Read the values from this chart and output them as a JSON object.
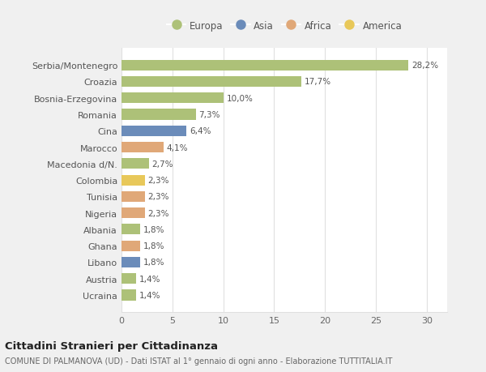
{
  "countries": [
    "Serbia/Montenegro",
    "Croazia",
    "Bosnia-Erzegovina",
    "Romania",
    "Cina",
    "Marocco",
    "Macedonia d/N.",
    "Colombia",
    "Tunisia",
    "Nigeria",
    "Albania",
    "Ghana",
    "Libano",
    "Austria",
    "Ucraina"
  ],
  "values": [
    28.2,
    17.7,
    10.0,
    7.3,
    6.4,
    4.1,
    2.7,
    2.3,
    2.3,
    2.3,
    1.8,
    1.8,
    1.8,
    1.4,
    1.4
  ],
  "labels": [
    "28,2%",
    "17,7%",
    "10,0%",
    "7,3%",
    "6,4%",
    "4,1%",
    "2,7%",
    "2,3%",
    "2,3%",
    "2,3%",
    "1,8%",
    "1,8%",
    "1,8%",
    "1,4%",
    "1,4%"
  ],
  "colors": [
    "#adc178",
    "#adc178",
    "#adc178",
    "#adc178",
    "#6b8cba",
    "#e0a878",
    "#adc178",
    "#e8c85a",
    "#e0a878",
    "#e0a878",
    "#adc178",
    "#e0a878",
    "#6b8cba",
    "#adc178",
    "#adc178"
  ],
  "legend": [
    {
      "label": "Europa",
      "color": "#adc178"
    },
    {
      "label": "Asia",
      "color": "#6b8cba"
    },
    {
      "label": "Africa",
      "color": "#e0a878"
    },
    {
      "label": "America",
      "color": "#e8c85a"
    }
  ],
  "title": "Cittadini Stranieri per Cittadinanza",
  "subtitle": "COMUNE DI PALMANOVA (UD) - Dati ISTAT al 1° gennaio di ogni anno - Elaborazione TUTTITALIA.IT",
  "xlim": [
    0,
    32
  ],
  "xticks": [
    0,
    5,
    10,
    15,
    20,
    25,
    30
  ],
  "figure_bg": "#f0f0f0",
  "plot_bg": "#ffffff",
  "grid_color": "#e0e0e0"
}
